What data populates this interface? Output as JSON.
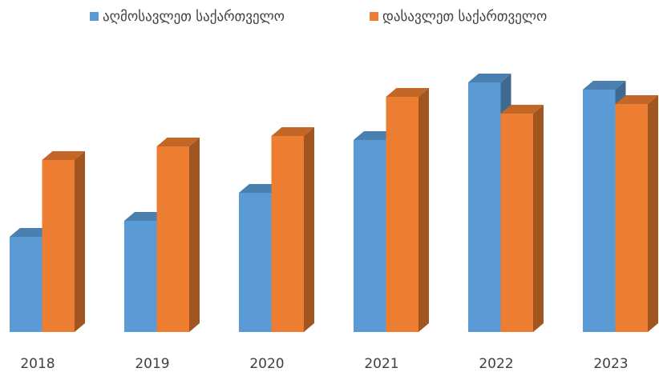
{
  "chart_data": {
    "type": "bar3d",
    "categories": [
      "2018",
      "2019",
      "2020",
      "2021",
      "2022",
      "2023"
    ],
    "series": [
      {
        "name": "აღმოსავლეთ საქართველო",
        "color": "#5b9bd5",
        "values": [
          119,
          139,
          174,
          240,
          312,
          303
        ]
      },
      {
        "name": "დასავლეთ საქართველო",
        "color": "#ed7d31",
        "values": [
          215,
          232,
          245,
          294,
          273,
          285
        ]
      }
    ]
  }
}
